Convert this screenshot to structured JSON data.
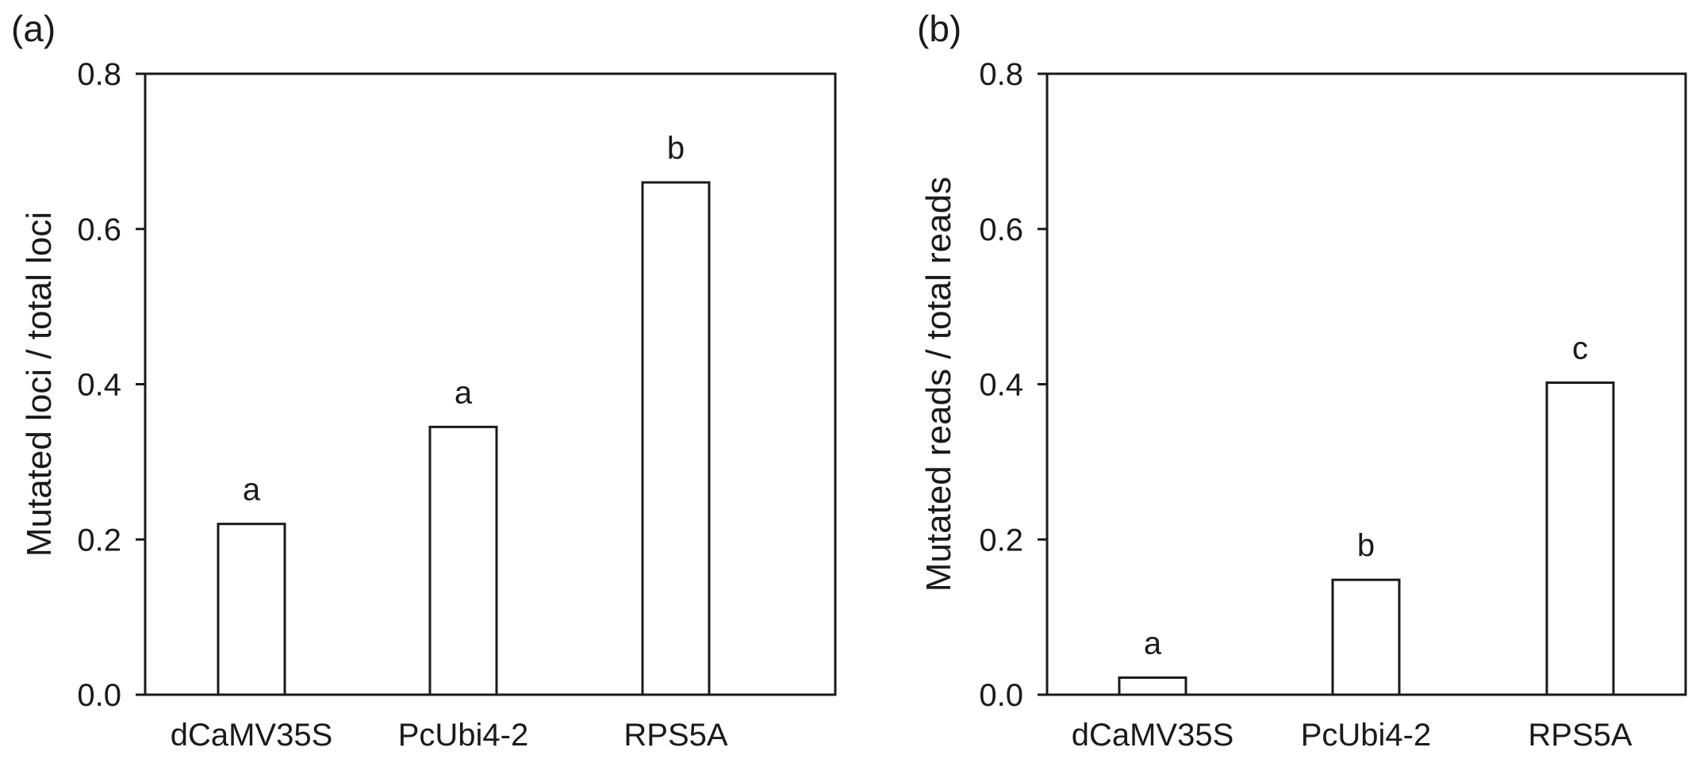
{
  "chart_data": [
    {
      "type": "bar",
      "panel_label": "(a)",
      "categories": [
        "dCaMV35S",
        "PcUbi4-2",
        "RPS5A"
      ],
      "values": [
        0.22,
        0.345,
        0.66
      ],
      "significance_letters": [
        "a",
        "a",
        "b"
      ],
      "ylabel": "Mutated loci / total loci",
      "xlabel": "",
      "ylim": [
        0,
        0.8
      ],
      "yticks": [
        "0.0",
        "0.2",
        "0.4",
        "0.6",
        "0.8"
      ],
      "grid": false,
      "bar_fill": "#ffffff",
      "bar_edge": "#1a1a1a"
    },
    {
      "type": "bar",
      "panel_label": "(b)",
      "categories": [
        "dCaMV35S",
        "PcUbi4-2",
        "RPS5A"
      ],
      "values": [
        0.022,
        0.148,
        0.402
      ],
      "significance_letters": [
        "a",
        "b",
        "c"
      ],
      "ylabel": "Mutated reads / total reads",
      "xlabel": "",
      "ylim": [
        0,
        0.8
      ],
      "yticks": [
        "0.0",
        "0.2",
        "0.4",
        "0.6",
        "0.8"
      ],
      "grid": false,
      "bar_fill": "#ffffff",
      "bar_edge": "#1a1a1a"
    }
  ]
}
